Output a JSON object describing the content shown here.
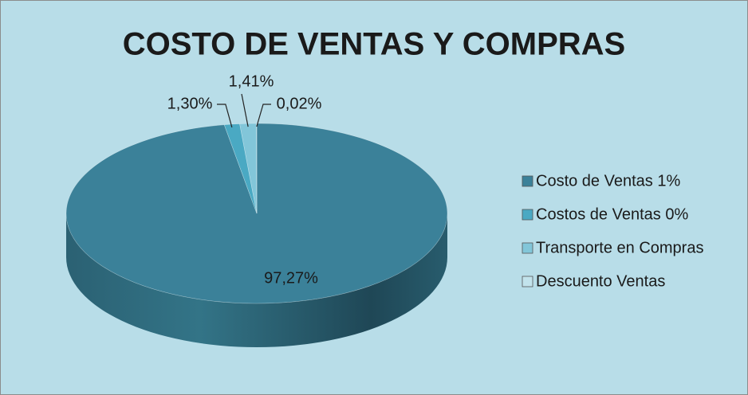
{
  "chart_data": {
    "type": "pie",
    "title": "COSTO DE VENTAS Y COMPRAS",
    "categories": [
      "Costo de Ventas 1%",
      "Costos de Ventas 0%",
      "Transporte en Compras",
      "Descuento Ventas"
    ],
    "values": [
      97.27,
      1.3,
      1.41,
      0.02
    ],
    "value_labels": [
      "97,27%",
      "1,30%",
      "1,41%",
      "0,02%"
    ],
    "colors": [
      "#3b8199",
      "#4aa9c3",
      "#82c6d9",
      "#c2e3ec"
    ],
    "legend": "right"
  }
}
